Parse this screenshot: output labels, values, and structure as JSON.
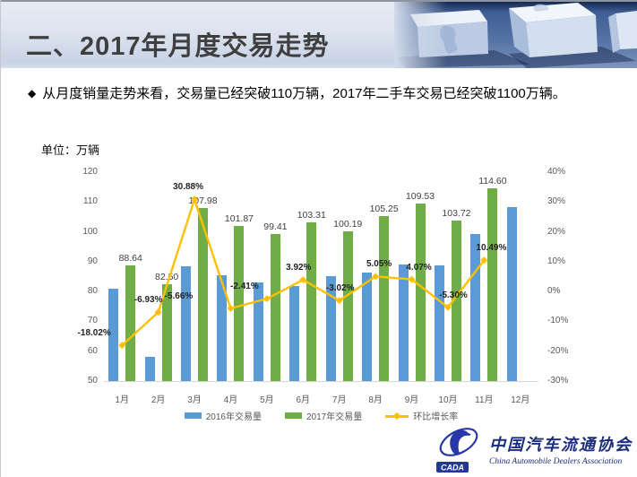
{
  "header": {
    "title": "二、2017年月度交易走势"
  },
  "bullet": {
    "marker": "◆",
    "text": "从月度销量走势来看，交易量已经突破110万辆，2017年二手车交易已经突破1100万辆。"
  },
  "chart_data": {
    "type": "combo_bar_line",
    "unit_label": "单位：万辆",
    "categories": [
      "1月",
      "2月",
      "3月",
      "4月",
      "5月",
      "6月",
      "7月",
      "8月",
      "9月",
      "10月",
      "11月",
      "12月"
    ],
    "series": [
      {
        "name": "2016年交易量",
        "type": "bar",
        "color": "#5B9BD5",
        "axis": "left",
        "values": [
          81.0,
          58.1,
          88.5,
          85.5,
          83.0,
          81.9,
          85.3,
          86.5,
          89.0,
          88.9,
          99.3,
          108.2
        ],
        "show_labels": false
      },
      {
        "name": "2017年交易量",
        "type": "bar",
        "color": "#70AD47",
        "axis": "left",
        "values": [
          88.64,
          82.5,
          107.98,
          101.87,
          99.41,
          103.31,
          100.19,
          105.25,
          109.53,
          103.72,
          114.6,
          null
        ],
        "show_labels": true
      },
      {
        "name": "环比增长率",
        "type": "line",
        "color": "#FFC000",
        "axis": "right",
        "values": [
          -18.02,
          -6.93,
          30.88,
          -5.66,
          -2.41,
          3.92,
          -3.02,
          5.05,
          4.07,
          -5.3,
          10.49,
          null
        ],
        "labels": [
          "-18.02%",
          "-6.93%",
          "30.88%",
          "-5.66%",
          "-2.41%",
          "3.92%",
          "-3.02%",
          "5.05%",
          "4.07%",
          "-5.30%",
          "10.49%",
          null
        ],
        "show_labels": true
      }
    ],
    "left_axis": {
      "min": 50,
      "max": 120,
      "step": 10,
      "ticks": [
        "50",
        "60",
        "70",
        "80",
        "90",
        "100",
        "110",
        "120"
      ]
    },
    "right_axis": {
      "min": -30,
      "max": 40,
      "step": 10,
      "ticks": [
        "-30%",
        "-20%",
        "-10%",
        "0%",
        "10%",
        "20%",
        "30%",
        "40%"
      ]
    },
    "gridlines": false,
    "legend_position": "bottom"
  },
  "logo": {
    "badge": "CADA",
    "name_cn": "中国汽车流通协会",
    "name_en": "China Automobile Dealers Association"
  },
  "colors": {
    "bar_2016": "#5B9BD5",
    "bar_2017": "#70AD47",
    "line_growth": "#FFC000",
    "title_text": "#3F3F3F",
    "axis_text": "#595959",
    "logo_navy": "#1B2D7D"
  }
}
